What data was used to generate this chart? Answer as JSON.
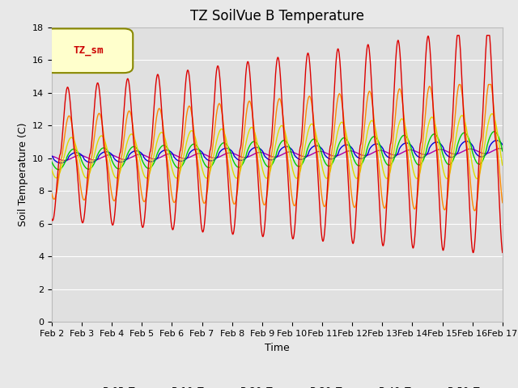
{
  "title": "TZ SoilVue B Temperature",
  "xlabel": "Time",
  "ylabel": "Soil Temperature (C)",
  "ylim": [
    0,
    18
  ],
  "yticks": [
    0,
    2,
    4,
    6,
    8,
    10,
    12,
    14,
    16,
    18
  ],
  "date_labels": [
    "Feb 2",
    "Feb 3",
    "Feb 4",
    "Feb 5",
    "Feb 6",
    "Feb 7",
    "Feb 8",
    "Feb 9",
    "Feb 10",
    "Feb 11",
    "Feb 12",
    "Feb 13",
    "Feb 14",
    "Feb 15",
    "Feb 16",
    "Feb 17"
  ],
  "legend_label": "TZ_sm",
  "series_colors": {
    "B-05_T": "#dd0000",
    "B-10_T": "#ff8800",
    "B-20_T": "#dddd00",
    "B-30_T": "#00cc00",
    "B-40_T": "#0000dd",
    "B-50_T": "#aa00aa"
  },
  "background_color": "#e8e8e8",
  "plot_bg_color": "#e0e0e0",
  "grid_color": "#ffffff",
  "title_fontsize": 12,
  "axis_fontsize": 9,
  "tick_fontsize": 8
}
